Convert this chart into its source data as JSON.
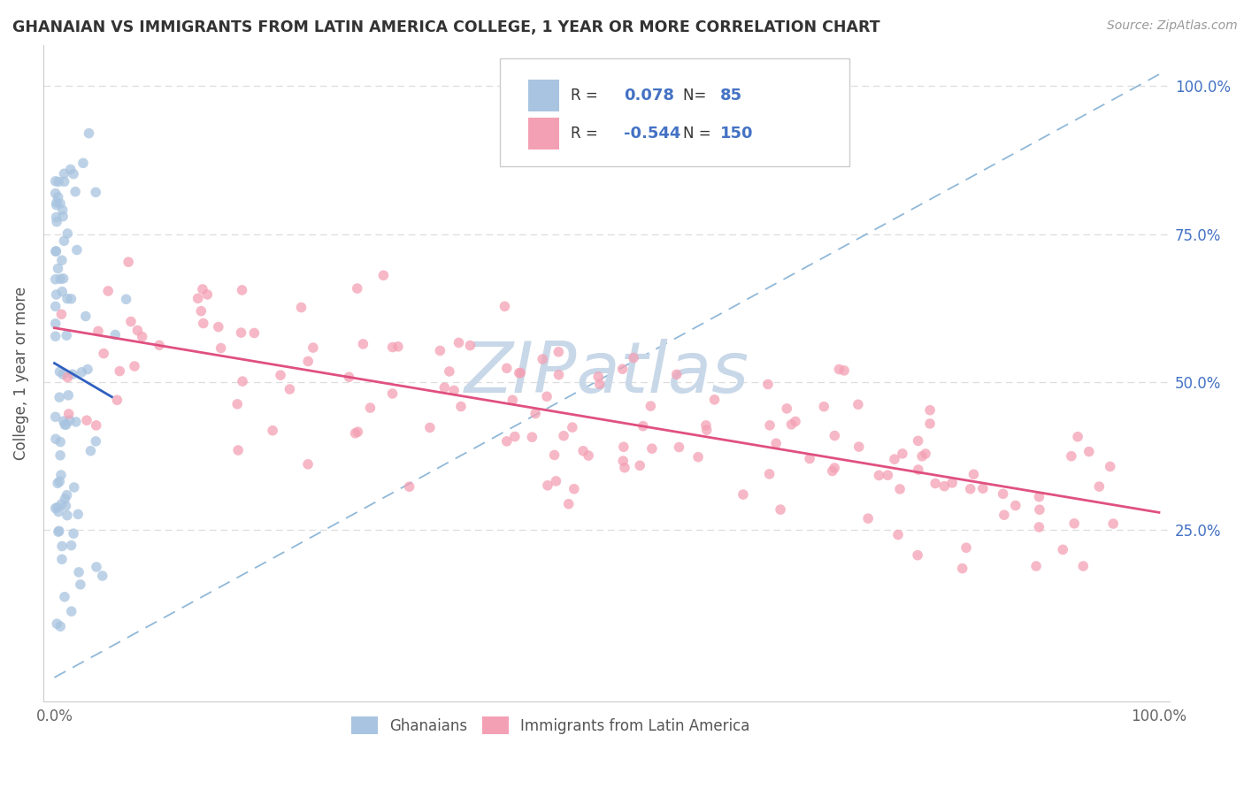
{
  "title": "GHANAIAN VS IMMIGRANTS FROM LATIN AMERICA COLLEGE, 1 YEAR OR MORE CORRELATION CHART",
  "source_text": "Source: ZipAtlas.com",
  "ylabel": "College, 1 year or more",
  "r_ghanaian": 0.078,
  "n_ghanaian": 85,
  "r_latin": -0.544,
  "n_latin": 150,
  "ghanaian_color": "#a8c4e0",
  "latin_color": "#f4a0b4",
  "ghanaian_line_color": "#3060c0",
  "latin_line_color": "#e05080",
  "dashed_line_color": "#90b8d8",
  "watermark": "ZIPatlas",
  "watermark_color": "#c8d8e8",
  "legend_border_color": "#cccccc",
  "grid_color": "#dddddd",
  "right_tick_color": "#4472c4",
  "title_color": "#333333",
  "ylabel_color": "#555555",
  "source_color": "#999999"
}
